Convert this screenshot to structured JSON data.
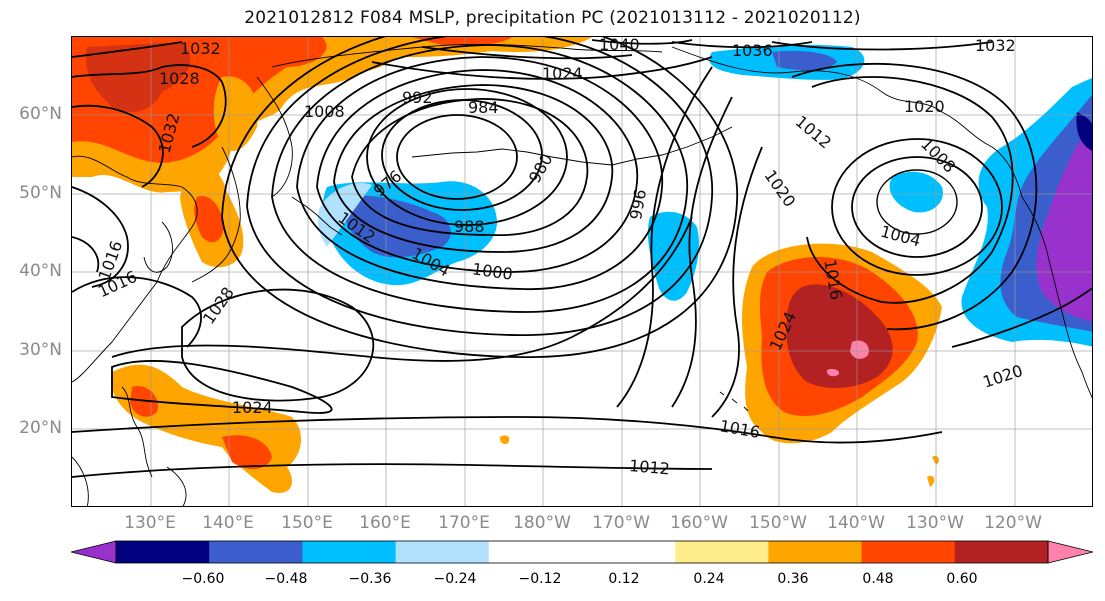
{
  "title": "2021012812 F084 MSLP, precipitation PC (2021013112 - 2021020112)",
  "lat_labels": [
    {
      "text": "60°N",
      "lat": 60
    },
    {
      "text": "50°N",
      "lat": 50
    },
    {
      "text": "40°N",
      "lat": 40
    },
    {
      "text": "30°N",
      "lat": 30
    },
    {
      "text": "20°N",
      "lat": 20
    }
  ],
  "lon_labels": [
    "130°E",
    "140°E",
    "150°E",
    "160°E",
    "170°E",
    "180°W",
    "170°W",
    "160°W",
    "150°W",
    "140°W",
    "130°W",
    "120°W"
  ],
  "colorbar": {
    "colors": [
      "#9932cc",
      "#000080",
      "#3a5fcd",
      "#00bfff",
      "#b0e2ff",
      "#ffffff",
      "#ffffff",
      "#ffec8b",
      "#ffa500",
      "#ff4500",
      "#b22222",
      "#ff82ab"
    ],
    "tick_labels": [
      "−0.60",
      "−0.48",
      "−0.36",
      "−0.24",
      "−0.12",
      "0.12",
      "0.24",
      "0.36",
      "0.48",
      "0.60"
    ],
    "extend": "both"
  },
  "contour_labels": {
    "l1032a": "1032",
    "l1028": "1028",
    "l1032b": "1032",
    "l992": "992",
    "l984": "984",
    "l1024a": "1024",
    "l1040": "1040",
    "l1036": "1036",
    "l1032c": "1032",
    "l1020a": "1020",
    "l1012a": "1012",
    "l1008": "1008",
    "l980": "980",
    "l976": "976",
    "l988": "988",
    "l996": "996",
    "l1020b": "1020",
    "l1016a": "1016",
    "l1004a": "1004",
    "l1012b": "1012",
    "l1004b": "1004",
    "l1000": "1000",
    "l1016b": "1016",
    "l1028b": "1028",
    "l1024b": "1024",
    "l1024c": "1024",
    "l1020c": "1020",
    "l1016c": "1016",
    "l1012c": "1012"
  }
}
